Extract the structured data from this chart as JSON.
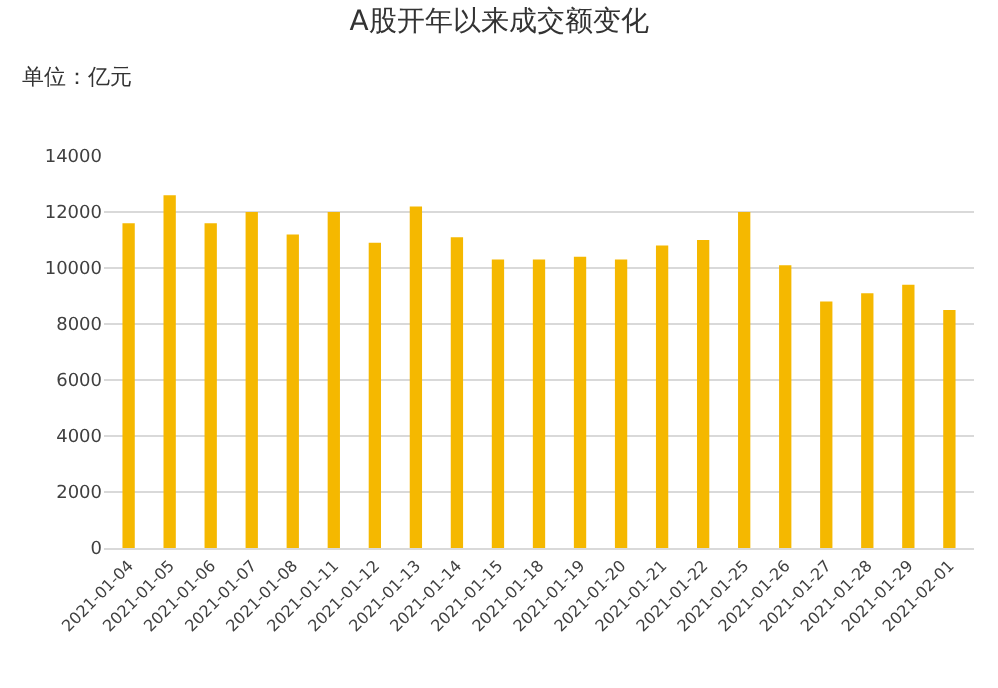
{
  "chart_data": {
    "type": "bar",
    "title": "A股开年以来成交额变化",
    "subtitle": "单位：亿元",
    "categories": [
      "2021-01-04",
      "2021-01-05",
      "2021-01-06",
      "2021-01-07",
      "2021-01-08",
      "2021-01-11",
      "2021-01-12",
      "2021-01-13",
      "2021-01-14",
      "2021-01-15",
      "2021-01-18",
      "2021-01-19",
      "2021-01-20",
      "2021-01-21",
      "2021-01-22",
      "2021-01-25",
      "2021-01-26",
      "2021-01-27",
      "2021-01-28",
      "2021-01-29",
      "2021-02-01"
    ],
    "values": [
      11600,
      12600,
      11600,
      12000,
      11200,
      12000,
      10900,
      12200,
      11100,
      10300,
      10300,
      10400,
      10300,
      10800,
      11000,
      12000,
      10100,
      8800,
      9100,
      9400,
      8500
    ],
    "color": "#f5b800",
    "ylim": [
      0,
      14000
    ],
    "yticks": [
      0,
      2000,
      4000,
      6000,
      8000,
      10000,
      12000,
      14000
    ],
    "grid": "y"
  }
}
